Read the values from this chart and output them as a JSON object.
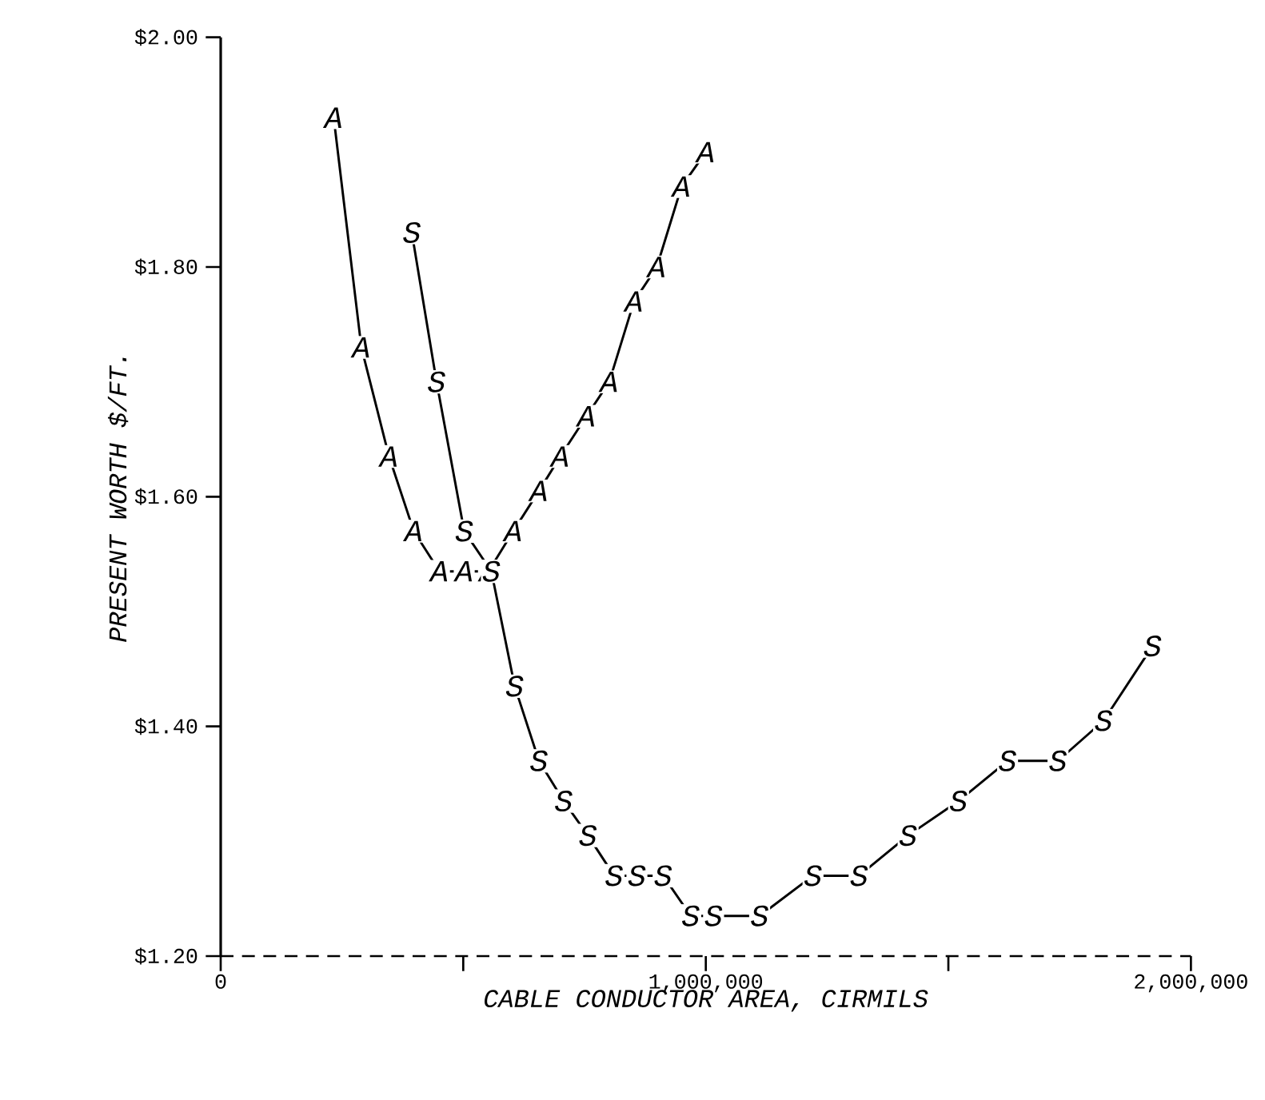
{
  "chart_data": {
    "type": "line",
    "xlabel": "CABLE CONDUCTOR AREA, CIRMILS",
    "ylabel": "PRESENT WORTH $/FT.",
    "xlim": [
      0,
      2000000
    ],
    "ylim": [
      1.2,
      2.0
    ],
    "xticks": [
      0,
      {
        "value": 500000,
        "label": null
      },
      {
        "value": 1000000,
        "label": "1,000,000"
      },
      {
        "value": 1500000,
        "label": null
      },
      {
        "value": 2000000,
        "label": "2,000,000"
      }
    ],
    "yticks": [
      {
        "value": 1.2,
        "label": "$1.20"
      },
      {
        "value": 1.4,
        "label": "$1.40"
      },
      {
        "value": 1.6,
        "label": "$1.60"
      },
      {
        "value": 1.8,
        "label": "$1.80"
      },
      {
        "value": 2.0,
        "label": "$2.00"
      }
    ],
    "ref_lines": [
      {
        "axis": "y",
        "value": 1.2,
        "line_style": "dashed"
      }
    ],
    "line_style": "solid",
    "marker": "square",
    "series": [
      {
        "name": "A",
        "color": "#000000",
        "x": [
          233000,
          290000,
          347000,
          398000,
          451000,
          502000,
          552000,
          603000,
          656000,
          700000,
          754000,
          801000,
          852000,
          899000,
          950000,
          1000000
        ],
        "values": [
          1.93,
          1.73,
          1.635,
          1.57,
          1.535,
          1.535,
          1.535,
          1.57,
          1.605,
          1.635,
          1.67,
          1.7,
          1.77,
          1.8,
          1.87,
          1.9
        ]
      },
      {
        "name": "S",
        "color": "#000000",
        "x": [
          394000,
          445000,
          502000,
          558000,
          606000,
          656000,
          707000,
          757000,
          811000,
          858000,
          912000,
          969000,
          1016000,
          1111000,
          1221000,
          1316000,
          1417000,
          1521000,
          1622000,
          1726000,
          1820000,
          1921000
        ],
        "values": [
          1.83,
          1.7,
          1.57,
          1.535,
          1.435,
          1.37,
          1.335,
          1.305,
          1.27,
          1.27,
          1.27,
          1.235,
          1.235,
          1.235,
          1.27,
          1.27,
          1.305,
          1.335,
          1.37,
          1.37,
          1.405,
          1.47
        ]
      }
    ]
  }
}
